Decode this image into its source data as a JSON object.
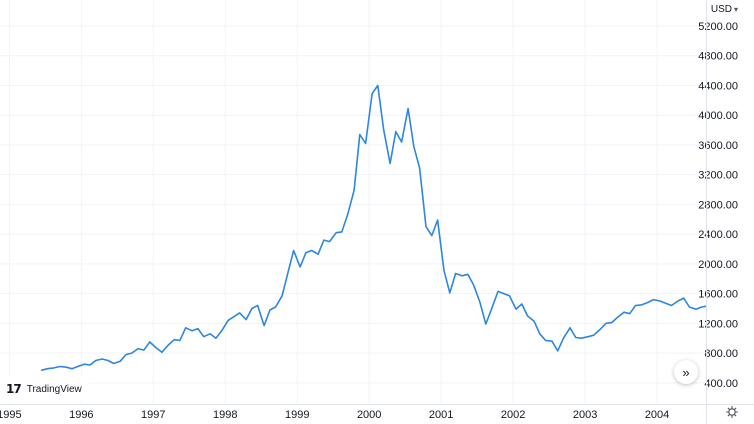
{
  "chart_data": {
    "type": "line",
    "title": "",
    "xlabel": "",
    "ylabel": "",
    "currency": "USD",
    "x_tick_labels": [
      "1995",
      "1996",
      "1997",
      "1998",
      "1999",
      "2000",
      "2001",
      "2002",
      "2003",
      "2004"
    ],
    "y_tick_labels": [
      "400.00",
      "800.00",
      "1200.00",
      "1600.00",
      "2000.00",
      "2400.00",
      "2800.00",
      "3200.00",
      "3600.00",
      "4000.00",
      "4400.00",
      "4800.00",
      "5200.00"
    ],
    "ylim": [
      115,
      5550
    ],
    "xlim": [
      1994.87,
      2004.68
    ],
    "grid": true,
    "series": [
      {
        "color": "#2e86de",
        "x": [
          1995.45,
          1995.53,
          1995.62,
          1995.7,
          1995.79,
          1995.87,
          1995.95,
          1996.04,
          1996.12,
          1996.2,
          1996.29,
          1996.37,
          1996.45,
          1996.54,
          1996.62,
          1996.7,
          1996.79,
          1996.87,
          1996.95,
          1997.04,
          1997.12,
          1997.2,
          1997.29,
          1997.37,
          1997.45,
          1997.54,
          1997.62,
          1997.7,
          1997.79,
          1997.87,
          1997.95,
          1998.04,
          1998.12,
          1998.2,
          1998.29,
          1998.37,
          1998.45,
          1998.54,
          1998.62,
          1998.7,
          1998.79,
          1998.87,
          1998.95,
          1999.04,
          1999.12,
          1999.2,
          1999.29,
          1999.37,
          1999.45,
          1999.54,
          1999.62,
          1999.7,
          1999.79,
          1999.87,
          1999.95,
          2000.04,
          2000.12,
          2000.2,
          2000.29,
          2000.37,
          2000.45,
          2000.54,
          2000.62,
          2000.7,
          2000.79,
          2000.87,
          2000.95,
          2001.04,
          2001.12,
          2001.2,
          2001.29,
          2001.37,
          2001.45,
          2001.54,
          2001.62,
          2001.7,
          2001.79,
          2001.87,
          2001.95,
          2002.04,
          2002.12,
          2002.2,
          2002.29,
          2002.37,
          2002.45,
          2002.54,
          2002.62,
          2002.7,
          2002.79,
          2002.87,
          2002.95,
          2003.04,
          2003.12,
          2003.2,
          2003.29,
          2003.37,
          2003.45,
          2003.54,
          2003.62,
          2003.7,
          2003.79,
          2003.87,
          2003.95,
          2004.04,
          2004.12,
          2004.2,
          2004.29,
          2004.37,
          2004.45,
          2004.54,
          2004.62,
          2004.68
        ],
        "y": [
          570,
          590,
          600,
          620,
          610,
          590,
          620,
          650,
          640,
          700,
          720,
          700,
          660,
          690,
          780,
          800,
          860,
          840,
          950,
          870,
          810,
          900,
          980,
          970,
          1140,
          1100,
          1130,
          1020,
          1060,
          1000,
          1100,
          1240,
          1290,
          1340,
          1250,
          1400,
          1440,
          1170,
          1380,
          1420,
          1570,
          1880,
          2180,
          1960,
          2150,
          2180,
          2130,
          2320,
          2300,
          2420,
          2430,
          2660,
          2990,
          3740,
          3620,
          4290,
          4400,
          3810,
          3350,
          3780,
          3640,
          4090,
          3580,
          3290,
          2500,
          2380,
          2590,
          1910,
          1610,
          1870,
          1840,
          1860,
          1720,
          1480,
          1190,
          1390,
          1630,
          1600,
          1570,
          1390,
          1460,
          1300,
          1230,
          1060,
          970,
          960,
          830,
          1000,
          1140,
          1010,
          1000,
          1020,
          1040,
          1110,
          1200,
          1210,
          1280,
          1350,
          1330,
          1440,
          1450,
          1480,
          1520,
          1500,
          1470,
          1440,
          1500,
          1540,
          1420,
          1390,
          1420,
          1430
        ]
      }
    ]
  },
  "ui": {
    "currency_label": "USD",
    "logo_text": "TradingView",
    "logo_mark": "17",
    "scroll_glyph": "»"
  }
}
